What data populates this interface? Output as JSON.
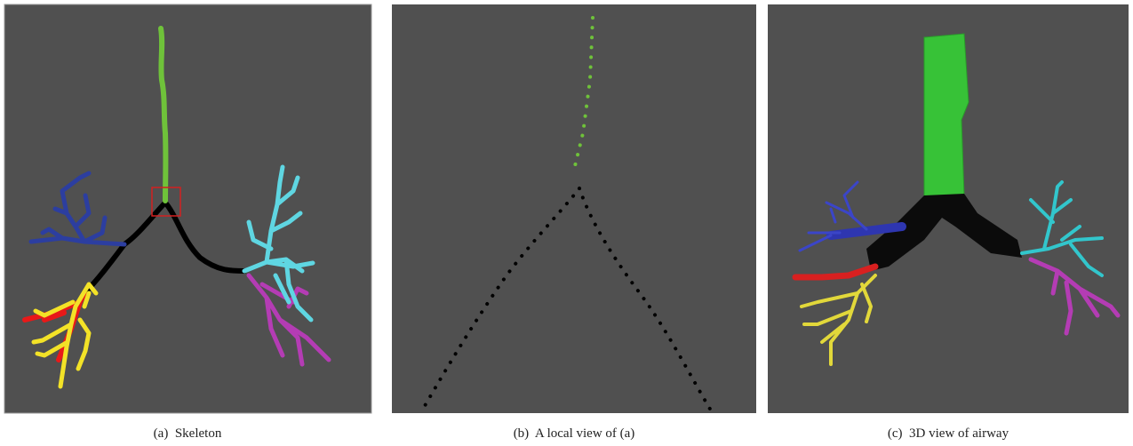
{
  "panels": [
    {
      "caption": "(a)  Skeleton"
    },
    {
      "caption": "(b)  A local view of (a)"
    },
    {
      "caption": "(c)  3D view of airway"
    }
  ]
}
